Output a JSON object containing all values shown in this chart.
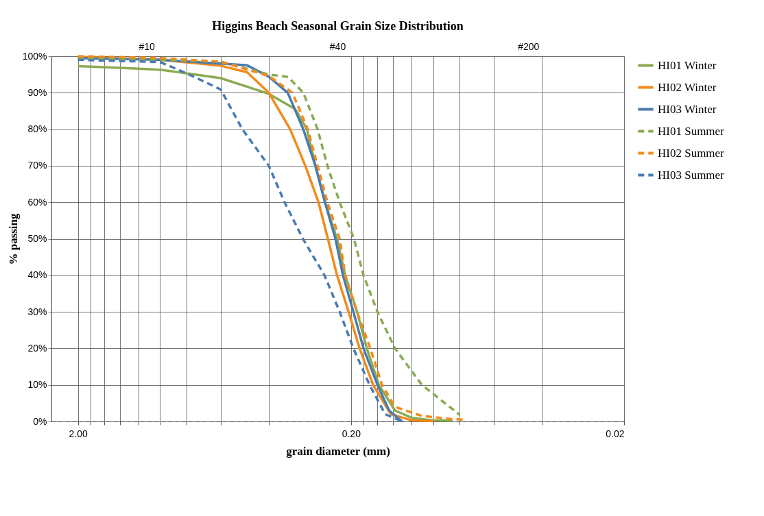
{
  "chart_data": {
    "type": "line",
    "title": "Higgins Beach Seasonal Grain Size Distribution",
    "xlabel": "grain diameter (mm)",
    "ylabel": "% passing",
    "log": "x",
    "grid": true,
    "legend": "right",
    "marker": "none",
    "xlim": [
      2.5,
      0.02
    ],
    "xticks": [
      {
        "value": 2.0,
        "label": "2.00"
      },
      {
        "value": 1.8,
        "label": null
      },
      {
        "value": 1.6,
        "label": null
      },
      {
        "value": 1.4,
        "label": null
      },
      {
        "value": 1.2,
        "label": null
      },
      {
        "value": 1.0,
        "label": null
      },
      {
        "value": 0.8,
        "label": null
      },
      {
        "value": 0.6,
        "label": null
      },
      {
        "value": 0.4,
        "label": null
      },
      {
        "value": 0.2,
        "label": "0.20"
      },
      {
        "value": 0.18,
        "label": null
      },
      {
        "value": 0.16,
        "label": null
      },
      {
        "value": 0.14,
        "label": null
      },
      {
        "value": 0.12,
        "label": null
      },
      {
        "value": 0.1,
        "label": null
      },
      {
        "value": 0.08,
        "label": null
      },
      {
        "value": 0.06,
        "label": null
      },
      {
        "value": 0.04,
        "label": null
      },
      {
        "value": 0.02,
        "label": "0.02"
      }
    ],
    "annotations": [
      "#10",
      "#40",
      "#200"
    ],
    "ylim": [
      0,
      100
    ],
    "yticks": [
      {
        "value": 0,
        "label": "0%"
      },
      {
        "value": 10,
        "label": "10%"
      },
      {
        "value": 20,
        "label": "20%"
      },
      {
        "value": 30,
        "label": "30%"
      },
      {
        "value": 40,
        "label": "40%"
      },
      {
        "value": 50,
        "label": "50%"
      },
      {
        "value": 60,
        "label": "60%"
      },
      {
        "value": 70,
        "label": "70%"
      },
      {
        "value": 80,
        "label": "80%"
      },
      {
        "value": 90,
        "label": "90%"
      },
      {
        "value": 100,
        "label": "100%"
      }
    ],
    "series": [
      {
        "name": "HI01 Winter",
        "color": "#8aab52",
        "line_style": "solid",
        "x": [
          2.0,
          1.4,
          1.0,
          0.6,
          0.4,
          0.32,
          0.29,
          0.27,
          0.249,
          0.225,
          0.21,
          0.19,
          0.175,
          0.158,
          0.138,
          0.12,
          0.1,
          0.085
        ],
        "values": [
          97.3,
          96.8,
          96.3,
          94,
          89.7,
          85.5,
          80,
          70,
          60,
          50,
          40,
          30,
          20,
          10,
          3,
          1,
          0.3,
          0.2
        ]
      },
      {
        "name": "HI02 Winter",
        "color": "#f28a1a",
        "line_style": "solid",
        "x": [
          2.0,
          1.0,
          0.6,
          0.48,
          0.4,
          0.334,
          0.294,
          0.263,
          0.243,
          0.225,
          0.204,
          0.186,
          0.166,
          0.143,
          0.12,
          0.1
        ],
        "values": [
          99.8,
          99,
          97.4,
          95.6,
          90,
          80,
          70,
          60,
          50,
          40,
          30,
          20,
          10,
          2,
          0.3,
          0.1
        ]
      },
      {
        "name": "HI03 Winter",
        "color": "#4a7bb0",
        "line_style": "solid",
        "x": [
          2.0,
          1.0,
          0.6,
          0.48,
          0.4,
          0.341,
          0.299,
          0.27,
          0.249,
          0.228,
          0.214,
          0.196,
          0.18,
          0.16,
          0.145,
          0.13
        ],
        "values": [
          99.5,
          99,
          98,
          97.5,
          94.4,
          90,
          80,
          70,
          60,
          50,
          40,
          30,
          20,
          10,
          3,
          0
        ]
      },
      {
        "name": "HI01 Summer",
        "color": "#8aab52",
        "line_style": "dashed",
        "x": [
          2.0,
          1.0,
          0.6,
          0.4,
          0.34,
          0.299,
          0.265,
          0.244,
          0.22,
          0.195,
          0.18,
          0.16,
          0.138,
          0.11,
          0.08
        ],
        "values": [
          99.5,
          99,
          98.5,
          95,
          94.3,
          90,
          80,
          70,
          60,
          50,
          40,
          30,
          20,
          10,
          1.8
        ]
      },
      {
        "name": "HI02 Summer",
        "color": "#f28a1a",
        "line_style": "dashed",
        "x": [
          2.0,
          1.0,
          0.6,
          0.4,
          0.328,
          0.288,
          0.265,
          0.244,
          0.22,
          0.21,
          0.19,
          0.17,
          0.154,
          0.138,
          0.11,
          0.087,
          0.078
        ],
        "values": [
          100,
          99.5,
          98.5,
          94.6,
          90,
          80,
          70,
          60,
          50,
          40,
          30,
          20,
          10,
          4,
          1.5,
          0.7,
          0.5
        ]
      },
      {
        "name": "HI03 Summer",
        "color": "#4a7bb0",
        "line_style": "dashed",
        "x": [
          2.0,
          1.0,
          0.8,
          0.6,
          0.5,
          0.4,
          0.35,
          0.3,
          0.25,
          0.22,
          0.196,
          0.171,
          0.15,
          0.13
        ],
        "values": [
          99,
          98.4,
          95.3,
          90.9,
          80,
          70,
          60,
          50,
          40,
          30,
          20,
          10,
          2,
          0
        ]
      }
    ]
  }
}
